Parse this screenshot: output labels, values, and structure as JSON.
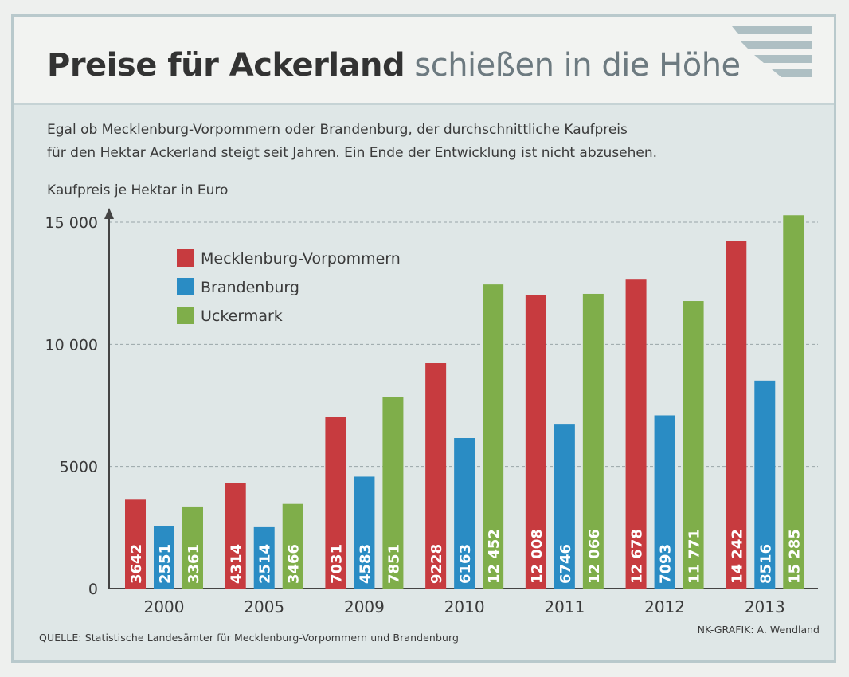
{
  "header": {
    "title_bold": "Preise für Ackerland",
    "title_light": "schießen in die Höhe"
  },
  "subtitle": {
    "line1": "Egal ob Mecklenburg-Vorpommern oder Brandenburg, der durchschnittliche Kaufpreis",
    "line2": "für den Hektar Ackerland steigt seit Jahren. Ein Ende der Entwicklung ist nicht abzusehen."
  },
  "footer": {
    "source": "QUELLE:  Statistische Landesämter für Mecklenburg-Vorpommern und Brandenburg",
    "credit": "NK-GRAFIK: A. Wendland"
  },
  "colors": {
    "Mecklenburg-Vorpommern": "#c73b3f",
    "Brandenburg": "#2a8cc4",
    "Uckermark": "#7fae4a"
  },
  "chart_data": {
    "type": "bar",
    "title": "Preise für Ackerland schießen in die Höhe",
    "xlabel": "",
    "ylabel": "Kaufpreis je Hektar in Euro",
    "ylim": [
      0,
      15000
    ],
    "yticks": [
      0,
      5000,
      10000,
      15000
    ],
    "ytick_labels": [
      "0",
      "5000",
      "10 000",
      "15 000"
    ],
    "grid": "horizontal dashed",
    "legend_position": "top-left",
    "categories": [
      "2000",
      "2005",
      "2009",
      "2010",
      "2011",
      "2012",
      "2013"
    ],
    "series": [
      {
        "name": "Mecklenburg-Vorpommern",
        "values": [
          3642,
          4314,
          7031,
          9228,
          12008,
          12678,
          14242
        ],
        "labels": [
          "3642",
          "4314",
          "7031",
          "9228",
          "12 008",
          "12 678",
          "14 242"
        ]
      },
      {
        "name": "Brandenburg",
        "values": [
          2551,
          2514,
          4583,
          6163,
          6746,
          7093,
          8516
        ],
        "labels": [
          "2551",
          "2514",
          "4583",
          "6163",
          "6746",
          "7093",
          "8516"
        ]
      },
      {
        "name": "Uckermark",
        "values": [
          3361,
          3466,
          7851,
          12452,
          12066,
          11771,
          15285
        ],
        "labels": [
          "3361",
          "3466",
          "7851",
          "12 452",
          "12 066",
          "11 771",
          "15 285"
        ]
      }
    ]
  }
}
